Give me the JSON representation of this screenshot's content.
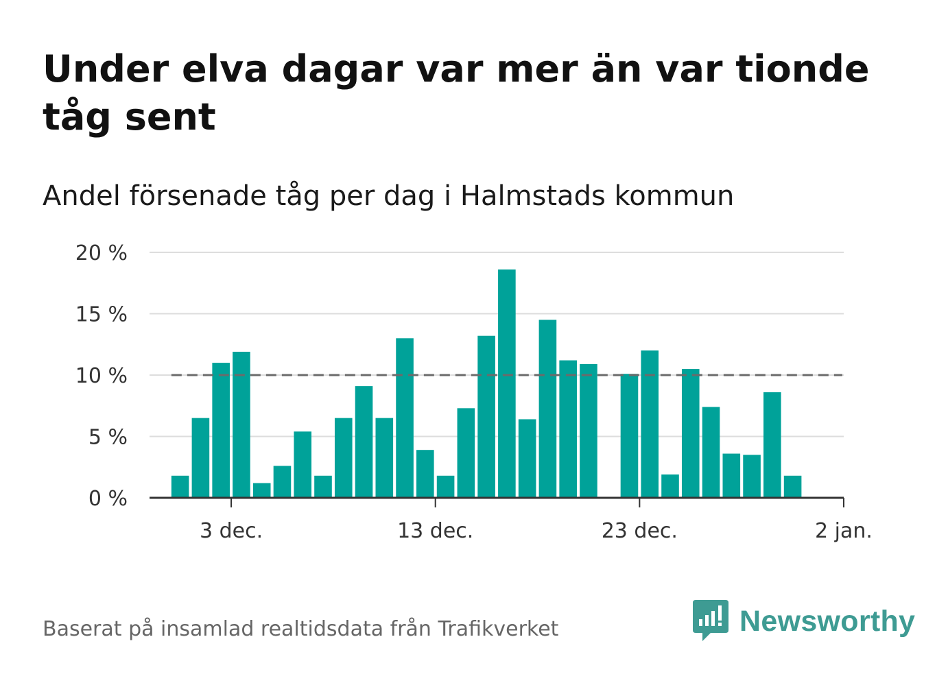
{
  "title": "Under elva dagar var mer än var tionde tåg sent",
  "subtitle": "Andel försenade tåg per dag i Halmstads kommun",
  "source": "Baserat på insamlad realtidsdata från Trafikverket",
  "brand": {
    "name": "Newsworthy",
    "color": "#3e9b93"
  },
  "colors": {
    "bar": "#00a299",
    "reference_line": "#6b6b6b",
    "grid": "#dddddd",
    "axis": "#333333"
  },
  "chart_data": {
    "type": "bar",
    "title": "Andel försenade tåg per dag i Halmstads kommun",
    "xlabel": "",
    "ylabel": "",
    "ylim": [
      0,
      20
    ],
    "yticks": [
      0,
      5,
      10,
      15,
      20
    ],
    "ytick_labels": [
      "0 %",
      "5 %",
      "10 %",
      "15 %",
      "20 %"
    ],
    "xticks": [
      {
        "date": "2023-12-03",
        "label": "3 dec."
      },
      {
        "date": "2023-12-13",
        "label": "13 dec."
      },
      {
        "date": "2023-12-23",
        "label": "23 dec."
      },
      {
        "date": "2024-01-02",
        "label": "2 jan."
      }
    ],
    "x_domain": [
      "2023-11-29",
      "2024-01-02"
    ],
    "reference_line": {
      "y": 10,
      "style": "dashed",
      "from": "2023-11-30",
      "to": "2024-01-01"
    },
    "grid": true,
    "categories": [
      "2023-11-30",
      "2023-12-01",
      "2023-12-02",
      "2023-12-03",
      "2023-12-04",
      "2023-12-05",
      "2023-12-06",
      "2023-12-07",
      "2023-12-08",
      "2023-12-09",
      "2023-12-10",
      "2023-12-11",
      "2023-12-12",
      "2023-12-13",
      "2023-12-14",
      "2023-12-15",
      "2023-12-16",
      "2023-12-17",
      "2023-12-18",
      "2023-12-19",
      "2023-12-20",
      "2023-12-21",
      "2023-12-22",
      "2023-12-23",
      "2023-12-24",
      "2023-12-25",
      "2023-12-26",
      "2023-12-27",
      "2023-12-28",
      "2023-12-29",
      "2023-12-30",
      "2023-12-31"
    ],
    "values": [
      1.8,
      6.5,
      11.0,
      11.9,
      1.2,
      2.6,
      5.4,
      1.8,
      6.5,
      9.1,
      6.5,
      13.0,
      3.9,
      1.8,
      7.3,
      13.2,
      18.6,
      6.4,
      14.5,
      11.2,
      10.9,
      null,
      10.1,
      12.0,
      1.9,
      10.5,
      7.4,
      3.6,
      3.5,
      8.6,
      1.8,
      null
    ]
  }
}
